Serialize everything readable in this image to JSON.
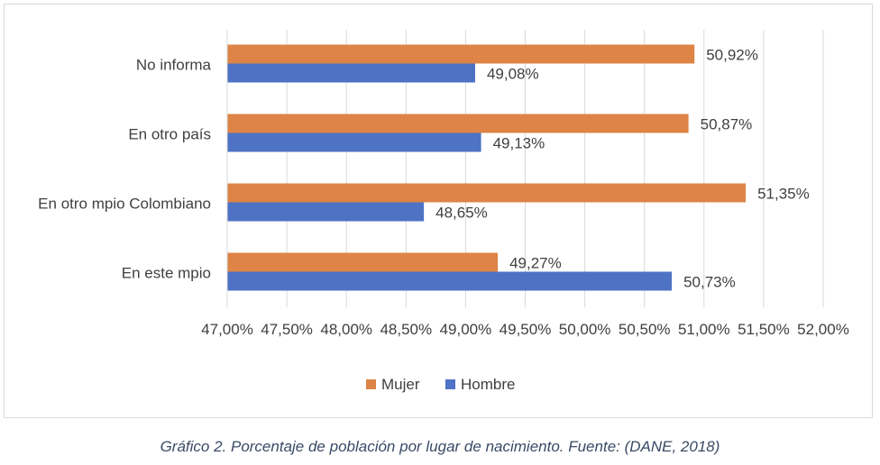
{
  "chart_data": {
    "type": "bar",
    "orientation": "horizontal",
    "categories": [
      "No informa",
      "En otro país",
      "En otro mpio Colombiano",
      "En este mpio"
    ],
    "series": [
      {
        "name": "Mujer",
        "color": "#dd8446",
        "values": [
          50.92,
          50.87,
          51.35,
          49.27
        ],
        "labels": [
          "50,92%",
          "50,87%",
          "51,35%",
          "49,27%"
        ]
      },
      {
        "name": "Hombre",
        "color": "#4e72c4",
        "values": [
          49.08,
          49.13,
          48.65,
          50.73
        ],
        "labels": [
          "49,08%",
          "49,13%",
          "48,65%",
          "50,73%"
        ]
      }
    ],
    "xlim": [
      47.0,
      52.0
    ],
    "ticks": [
      47.0,
      47.5,
      48.0,
      48.5,
      49.0,
      49.5,
      50.0,
      50.5,
      51.0,
      51.5,
      52.0
    ],
    "tick_labels": [
      "47,00%",
      "47,50%",
      "48,00%",
      "48,50%",
      "49,00%",
      "49,50%",
      "50,00%",
      "50,50%",
      "51,00%",
      "51,50%",
      "52,00%"
    ],
    "grid": true,
    "legend": "bottom-center",
    "gridline_color": "#d9d9d9"
  },
  "caption": "Gráfico 2. Porcentaje de población por lugar de nacimiento. Fuente: (DANE, 2018)"
}
